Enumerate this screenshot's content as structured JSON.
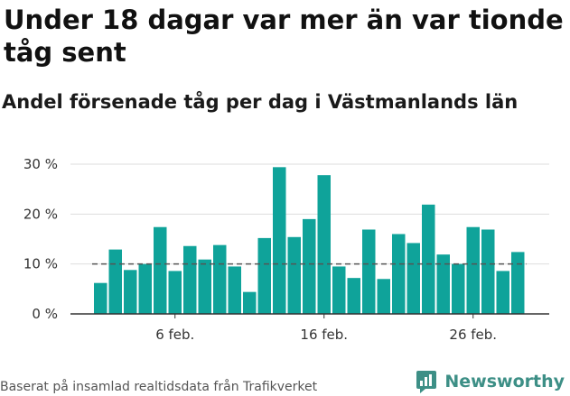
{
  "header": {
    "title": "Under 18 dagar var mer än var tionde tåg sent",
    "subtitle": "Andel försenade tåg per dag i Västmanlands län"
  },
  "footer": {
    "source": "Baserat på insamlad realtidsdata från Trafikverket",
    "brand": "Newsworthy",
    "brand_icon": "newsworthy-logo-icon"
  },
  "colors": {
    "bar": "#0fa39a",
    "reference_line": "#555555",
    "grid": "#dddddd",
    "brand": "#3d8f86"
  },
  "chart_data": {
    "type": "bar",
    "title": "",
    "xlabel": "",
    "ylabel": "",
    "categories": [
      "1 feb.",
      "2 feb.",
      "3 feb.",
      "4 feb.",
      "5 feb.",
      "6 feb.",
      "7 feb.",
      "8 feb.",
      "9 feb.",
      "10 feb.",
      "11 feb.",
      "12 feb.",
      "13 feb.",
      "14 feb.",
      "15 feb.",
      "16 feb.",
      "17 feb.",
      "18 feb.",
      "19 feb.",
      "20 feb.",
      "21 feb.",
      "22 feb.",
      "23 feb.",
      "24 feb.",
      "25 feb.",
      "26 feb.",
      "27 feb.",
      "28 feb.",
      "29 feb."
    ],
    "values": [
      6.2,
      12.9,
      8.8,
      10.0,
      17.4,
      8.6,
      13.6,
      10.9,
      13.8,
      9.5,
      4.4,
      15.2,
      29.4,
      15.4,
      19.0,
      27.8,
      9.5,
      7.2,
      16.9,
      7.0,
      16.0,
      14.2,
      21.9,
      11.9,
      10.0,
      17.4,
      16.9,
      8.6,
      12.4
    ],
    "reference_line": 10,
    "ylim": [
      0,
      30
    ],
    "yticks": [
      0,
      10,
      20,
      30
    ],
    "ytick_labels": [
      "0 %",
      "10 %",
      "20 %",
      "30 %"
    ],
    "xtick_labels": [
      {
        "index": 5,
        "label": "6 feb."
      },
      {
        "index": 15,
        "label": "16 feb."
      },
      {
        "index": 25,
        "label": "26 feb."
      }
    ],
    "grid": true
  }
}
